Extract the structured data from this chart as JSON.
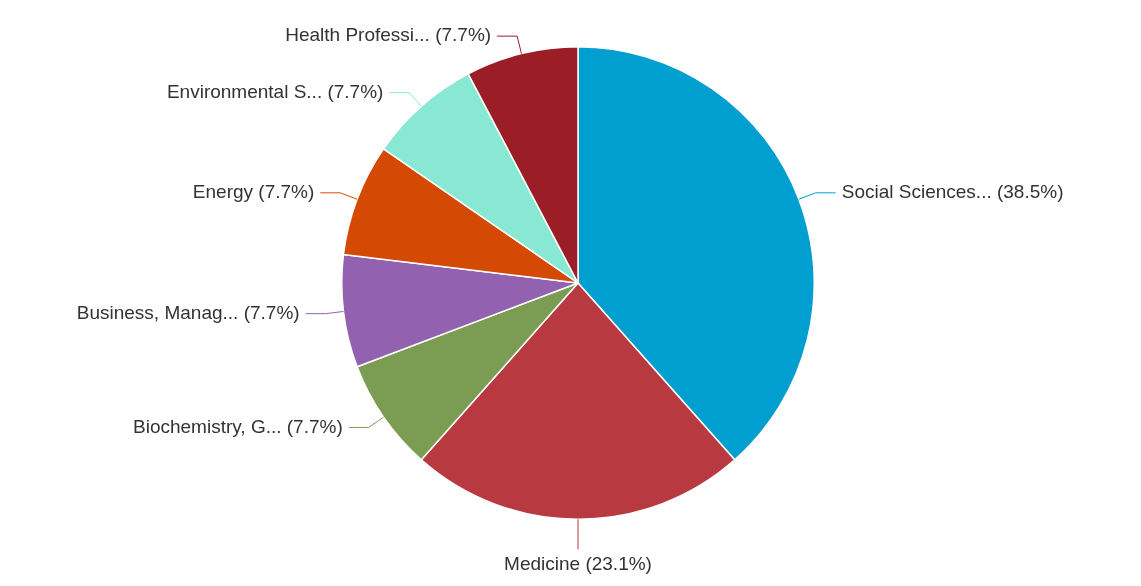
{
  "chart_data": {
    "type": "pie",
    "categories": [
      "Social Sciences...",
      "Medicine",
      "Biochemistry, G...",
      "Business, Manag...",
      "Energy",
      "Environmental S...",
      "Health Professi..."
    ],
    "values": [
      38.5,
      23.1,
      7.7,
      7.7,
      7.7,
      7.7,
      7.7
    ],
    "value_labels": [
      "(38.5%)",
      "(23.1%)",
      "(7.7%)",
      "(7.7%)",
      "(7.7%)",
      "(7.7%)",
      "(7.7%)"
    ],
    "colors": [
      "#009fd0",
      "#b83a40",
      "#7a9c53",
      "#9262b0",
      "#d44a04",
      "#88e8d4",
      "#9b1e27"
    ]
  }
}
